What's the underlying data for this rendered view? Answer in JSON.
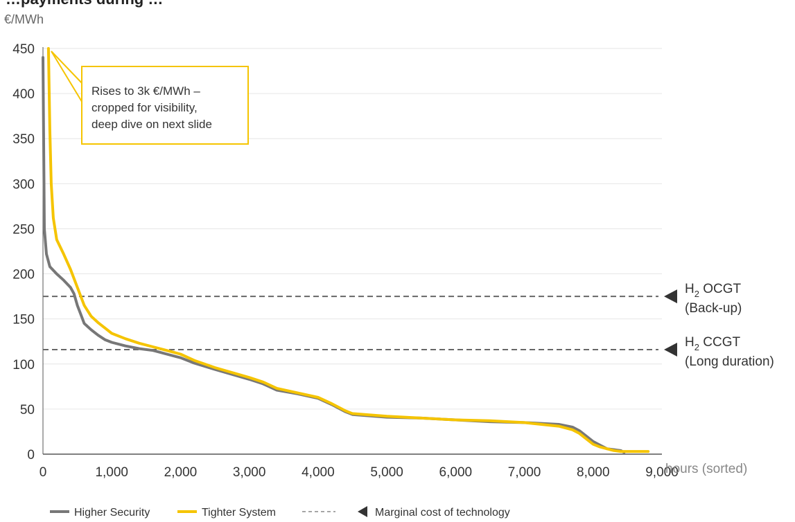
{
  "cropped_title": "…payments during …",
  "chart_data": {
    "type": "line",
    "ylabel": "€/MWh",
    "xlabel": "hours (sorted)",
    "xlim": [
      0,
      9000
    ],
    "ylim": [
      0,
      450
    ],
    "x_ticks": [
      0,
      1000,
      2000,
      3000,
      4000,
      5000,
      6000,
      7000,
      8000,
      9000
    ],
    "x_tick_labels": [
      "0",
      "1,000",
      "2,000",
      "3,000",
      "4,000",
      "5,000",
      "6,000",
      "7,000",
      "8,000",
      "9,000"
    ],
    "y_ticks": [
      0,
      50,
      100,
      150,
      200,
      250,
      300,
      350,
      400,
      450
    ],
    "y_tick_labels": [
      "0",
      "50",
      "100",
      "150",
      "200",
      "250",
      "300",
      "350",
      "400",
      "450"
    ],
    "grid": "horizontal",
    "series": [
      {
        "name": "Higher Security",
        "color": "#777777",
        "points": [
          [
            0,
            440
          ],
          [
            20,
            250
          ],
          [
            50,
            222
          ],
          [
            100,
            208
          ],
          [
            200,
            200
          ],
          [
            300,
            193
          ],
          [
            400,
            185
          ],
          [
            450,
            178
          ],
          [
            500,
            165
          ],
          [
            550,
            155
          ],
          [
            600,
            145
          ],
          [
            700,
            138
          ],
          [
            800,
            132
          ],
          [
            900,
            127
          ],
          [
            1000,
            124
          ],
          [
            1200,
            120
          ],
          [
            1400,
            117
          ],
          [
            1600,
            115
          ],
          [
            1800,
            111
          ],
          [
            2000,
            107
          ],
          [
            2200,
            101
          ],
          [
            2500,
            94
          ],
          [
            3000,
            83
          ],
          [
            3200,
            78
          ],
          [
            3400,
            71
          ],
          [
            3700,
            67
          ],
          [
            4000,
            62
          ],
          [
            4200,
            55
          ],
          [
            4400,
            47
          ],
          [
            4500,
            44
          ],
          [
            5000,
            41
          ],
          [
            5500,
            40
          ],
          [
            6000,
            38
          ],
          [
            6500,
            36
          ],
          [
            7000,
            35
          ],
          [
            7500,
            33
          ],
          [
            7700,
            30
          ],
          [
            7800,
            26
          ],
          [
            7900,
            20
          ],
          [
            8000,
            14
          ],
          [
            8100,
            10
          ],
          [
            8200,
            6
          ],
          [
            8300,
            5
          ],
          [
            8400,
            4
          ],
          [
            8450,
            2
          ]
        ]
      },
      {
        "name": "Tighter System",
        "color": "#F5C400",
        "points": [
          [
            80,
            450
          ],
          [
            100,
            360
          ],
          [
            120,
            300
          ],
          [
            150,
            262
          ],
          [
            200,
            238
          ],
          [
            300,
            222
          ],
          [
            400,
            205
          ],
          [
            500,
            185
          ],
          [
            600,
            165
          ],
          [
            700,
            153
          ],
          [
            800,
            146
          ],
          [
            900,
            140
          ],
          [
            1000,
            134
          ],
          [
            1200,
            128
          ],
          [
            1400,
            123
          ],
          [
            1600,
            119
          ],
          [
            1800,
            115
          ],
          [
            2000,
            111
          ],
          [
            2200,
            104
          ],
          [
            2500,
            96
          ],
          [
            3000,
            85
          ],
          [
            3200,
            80
          ],
          [
            3400,
            73
          ],
          [
            3700,
            68
          ],
          [
            4000,
            63
          ],
          [
            4200,
            56
          ],
          [
            4400,
            48
          ],
          [
            4500,
            45
          ],
          [
            5000,
            42
          ],
          [
            5500,
            40
          ],
          [
            6000,
            38
          ],
          [
            6500,
            37
          ],
          [
            7000,
            35
          ],
          [
            7500,
            31
          ],
          [
            7700,
            27
          ],
          [
            7800,
            23
          ],
          [
            7900,
            17
          ],
          [
            8000,
            11
          ],
          [
            8100,
            8
          ],
          [
            8200,
            6
          ],
          [
            8300,
            4
          ],
          [
            8400,
            3
          ],
          [
            8500,
            3
          ],
          [
            8800,
            3
          ]
        ]
      }
    ],
    "reference_lines": [
      {
        "value": 175,
        "label_main": "H",
        "label_sub": "2",
        "label_rest": " OCGT",
        "label_line2": "(Back-up)"
      },
      {
        "value": 116,
        "label_main": "H",
        "label_sub": "2",
        "label_rest": " CCGT",
        "label_line2": "(Long duration)"
      }
    ],
    "annotation": {
      "lines": [
        "Rises to 3k €/MWh –",
        "cropped for visibility,",
        "deep dive on next slide"
      ],
      "border_color": "#F5C400"
    },
    "legend": {
      "placement": "bottom",
      "items": [
        "Higher Security",
        "Tighter System",
        "Marginal cost of technology"
      ]
    }
  }
}
